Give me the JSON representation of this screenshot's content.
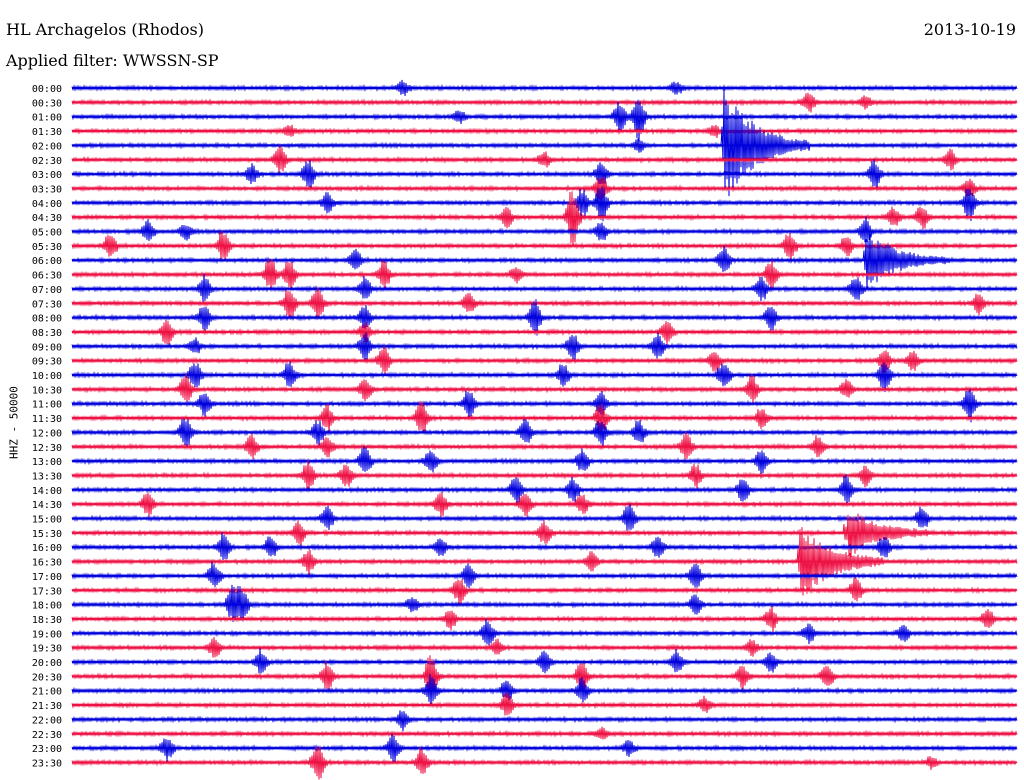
{
  "header": {
    "station": "HL Archagelos (Rhodos)",
    "date": "2013-10-19",
    "filter_label": "Applied filter: WWSSN-SP"
  },
  "axis": {
    "ylabel": "HHZ - 50000"
  },
  "colors": {
    "blue": "#0000dd",
    "red": "#ee1144",
    "background": "#ffffff"
  },
  "chart_data": {
    "type": "line",
    "description_of_axes": "helicorder",
    "ylabel": "HHZ - 50000",
    "rows": [
      {
        "label": "00:00",
        "color": "blue",
        "events": [
          [
            0.35,
            8
          ],
          [
            0.64,
            6
          ]
        ]
      },
      {
        "label": "00:30",
        "color": "red",
        "events": [
          [
            0.78,
            10
          ],
          [
            0.84,
            6
          ]
        ]
      },
      {
        "label": "01:00",
        "color": "blue",
        "events": [
          [
            0.58,
            15
          ],
          [
            0.6,
            24
          ],
          [
            0.41,
            6
          ]
        ]
      },
      {
        "label": "01:30",
        "color": "red",
        "events": [
          [
            0.68,
            6
          ],
          [
            0.23,
            6
          ]
        ]
      },
      {
        "label": "02:00",
        "color": "blue",
        "events": [
          [
            0.69,
            60,
            "quake"
          ],
          [
            0.6,
            6
          ]
        ]
      },
      {
        "label": "02:30",
        "color": "red",
        "events": [
          [
            0.22,
            14
          ],
          [
            0.5,
            8
          ],
          [
            0.93,
            10
          ]
        ]
      },
      {
        "label": "03:00",
        "color": "blue",
        "events": [
          [
            0.19,
            10
          ],
          [
            0.25,
            16
          ],
          [
            0.56,
            12
          ],
          [
            0.85,
            14
          ]
        ]
      },
      {
        "label": "03:30",
        "color": "red",
        "events": [
          [
            0.56,
            14
          ],
          [
            0.95,
            10
          ]
        ]
      },
      {
        "label": "04:00",
        "color": "blue",
        "events": [
          [
            0.27,
            10
          ],
          [
            0.54,
            14
          ],
          [
            0.56,
            20
          ],
          [
            0.95,
            18
          ]
        ]
      },
      {
        "label": "04:30",
        "color": "red",
        "events": [
          [
            0.53,
            30
          ],
          [
            0.46,
            10
          ],
          [
            0.87,
            10
          ],
          [
            0.9,
            12
          ]
        ]
      },
      {
        "label": "05:00",
        "color": "blue",
        "events": [
          [
            0.08,
            12
          ],
          [
            0.12,
            8
          ],
          [
            0.56,
            10
          ],
          [
            0.84,
            14
          ]
        ]
      },
      {
        "label": "05:30",
        "color": "red",
        "events": [
          [
            0.04,
            14
          ],
          [
            0.16,
            16
          ],
          [
            0.76,
            14
          ],
          [
            0.82,
            10
          ]
        ]
      },
      {
        "label": "06:00",
        "color": "blue",
        "events": [
          [
            0.84,
            30,
            "quake"
          ],
          [
            0.3,
            12
          ],
          [
            0.69,
            14
          ]
        ]
      },
      {
        "label": "06:30",
        "color": "red",
        "events": [
          [
            0.21,
            18
          ],
          [
            0.23,
            16
          ],
          [
            0.33,
            14
          ],
          [
            0.74,
            14
          ],
          [
            0.47,
            8
          ]
        ]
      },
      {
        "label": "07:00",
        "color": "blue",
        "events": [
          [
            0.14,
            14
          ],
          [
            0.31,
            12
          ],
          [
            0.73,
            12
          ],
          [
            0.83,
            14
          ]
        ]
      },
      {
        "label": "07:30",
        "color": "red",
        "events": [
          [
            0.23,
            16
          ],
          [
            0.26,
            18
          ],
          [
            0.42,
            10
          ],
          [
            0.96,
            10
          ]
        ]
      },
      {
        "label": "08:00",
        "color": "blue",
        "events": [
          [
            0.14,
            14
          ],
          [
            0.31,
            12
          ],
          [
            0.49,
            18
          ],
          [
            0.74,
            12
          ]
        ]
      },
      {
        "label": "08:30",
        "color": "red",
        "events": [
          [
            0.1,
            14
          ],
          [
            0.31,
            10
          ],
          [
            0.63,
            12
          ]
        ]
      },
      {
        "label": "09:00",
        "color": "blue",
        "events": [
          [
            0.31,
            14
          ],
          [
            0.53,
            14
          ],
          [
            0.62,
            14
          ],
          [
            0.13,
            8
          ]
        ]
      },
      {
        "label": "09:30",
        "color": "red",
        "events": [
          [
            0.33,
            14
          ],
          [
            0.68,
            12
          ],
          [
            0.86,
            12
          ],
          [
            0.89,
            10
          ]
        ]
      },
      {
        "label": "10:00",
        "color": "blue",
        "events": [
          [
            0.13,
            14
          ],
          [
            0.23,
            14
          ],
          [
            0.52,
            12
          ],
          [
            0.69,
            14
          ],
          [
            0.86,
            16
          ]
        ]
      },
      {
        "label": "10:30",
        "color": "red",
        "events": [
          [
            0.12,
            14
          ],
          [
            0.31,
            12
          ],
          [
            0.72,
            14
          ],
          [
            0.82,
            10
          ]
        ]
      },
      {
        "label": "11:00",
        "color": "blue",
        "events": [
          [
            0.14,
            12
          ],
          [
            0.42,
            14
          ],
          [
            0.56,
            12
          ],
          [
            0.95,
            18
          ]
        ]
      },
      {
        "label": "11:30",
        "color": "red",
        "events": [
          [
            0.27,
            14
          ],
          [
            0.37,
            16
          ],
          [
            0.56,
            14
          ],
          [
            0.73,
            10
          ]
        ]
      },
      {
        "label": "12:00",
        "color": "blue",
        "events": [
          [
            0.12,
            16
          ],
          [
            0.26,
            12
          ],
          [
            0.48,
            14
          ],
          [
            0.56,
            14
          ],
          [
            0.6,
            12
          ]
        ]
      },
      {
        "label": "12:30",
        "color": "red",
        "events": [
          [
            0.19,
            12
          ],
          [
            0.27,
            10
          ],
          [
            0.65,
            14
          ],
          [
            0.79,
            12
          ]
        ]
      },
      {
        "label": "13:00",
        "color": "blue",
        "events": [
          [
            0.31,
            14
          ],
          [
            0.38,
            12
          ],
          [
            0.54,
            12
          ],
          [
            0.73,
            12
          ]
        ]
      },
      {
        "label": "13:30",
        "color": "red",
        "events": [
          [
            0.25,
            14
          ],
          [
            0.29,
            12
          ],
          [
            0.66,
            12
          ],
          [
            0.84,
            10
          ]
        ]
      },
      {
        "label": "14:00",
        "color": "blue",
        "events": [
          [
            0.47,
            14
          ],
          [
            0.53,
            12
          ],
          [
            0.71,
            12
          ],
          [
            0.82,
            14
          ]
        ]
      },
      {
        "label": "14:30",
        "color": "red",
        "events": [
          [
            0.08,
            12
          ],
          [
            0.39,
            12
          ],
          [
            0.48,
            12
          ],
          [
            0.54,
            10
          ]
        ]
      },
      {
        "label": "15:00",
        "color": "blue",
        "events": [
          [
            0.27,
            12
          ],
          [
            0.59,
            14
          ],
          [
            0.9,
            12
          ]
        ]
      },
      {
        "label": "15:30",
        "color": "red",
        "events": [
          [
            0.24,
            12
          ],
          [
            0.5,
            12
          ],
          [
            0.82,
            26,
            "quake"
          ]
        ]
      },
      {
        "label": "16:00",
        "color": "blue",
        "events": [
          [
            0.16,
            14
          ],
          [
            0.21,
            12
          ],
          [
            0.39,
            10
          ],
          [
            0.62,
            12
          ],
          [
            0.86,
            12
          ]
        ]
      },
      {
        "label": "16:30",
        "color": "red",
        "events": [
          [
            0.77,
            40,
            "quake"
          ],
          [
            0.25,
            12
          ],
          [
            0.55,
            10
          ]
        ]
      },
      {
        "label": "17:00",
        "color": "blue",
        "events": [
          [
            0.15,
            14
          ],
          [
            0.42,
            12
          ],
          [
            0.66,
            14
          ]
        ]
      },
      {
        "label": "17:30",
        "color": "red",
        "events": [
          [
            0.41,
            14
          ],
          [
            0.83,
            12
          ]
        ]
      },
      {
        "label": "18:00",
        "color": "blue",
        "events": [
          [
            0.17,
            20
          ],
          [
            0.18,
            16
          ],
          [
            0.36,
            8
          ],
          [
            0.66,
            10
          ]
        ]
      },
      {
        "label": "18:30",
        "color": "red",
        "events": [
          [
            0.4,
            10
          ],
          [
            0.74,
            12
          ],
          [
            0.97,
            10
          ]
        ]
      },
      {
        "label": "19:00",
        "color": "blue",
        "events": [
          [
            0.44,
            14
          ],
          [
            0.78,
            10
          ],
          [
            0.88,
            8
          ]
        ]
      },
      {
        "label": "19:30",
        "color": "red",
        "events": [
          [
            0.15,
            10
          ],
          [
            0.45,
            8
          ],
          [
            0.72,
            8
          ]
        ]
      },
      {
        "label": "20:00",
        "color": "blue",
        "events": [
          [
            0.2,
            12
          ],
          [
            0.5,
            10
          ],
          [
            0.64,
            12
          ],
          [
            0.74,
            10
          ]
        ]
      },
      {
        "label": "20:30",
        "color": "red",
        "events": [
          [
            0.27,
            14
          ],
          [
            0.38,
            22
          ],
          [
            0.54,
            16
          ],
          [
            0.71,
            12
          ],
          [
            0.8,
            12
          ]
        ]
      },
      {
        "label": "21:00",
        "color": "blue",
        "events": [
          [
            0.38,
            16
          ],
          [
            0.46,
            10
          ],
          [
            0.54,
            12
          ]
        ]
      },
      {
        "label": "21:30",
        "color": "red",
        "events": [
          [
            0.46,
            12
          ],
          [
            0.67,
            8
          ]
        ]
      },
      {
        "label": "22:00",
        "color": "blue",
        "events": [
          [
            0.35,
            10
          ]
        ]
      },
      {
        "label": "22:30",
        "color": "red",
        "events": [
          [
            0.56,
            6
          ]
        ]
      },
      {
        "label": "23:00",
        "color": "blue",
        "events": [
          [
            0.1,
            12
          ],
          [
            0.34,
            14
          ],
          [
            0.59,
            8
          ]
        ]
      },
      {
        "label": "23:30",
        "color": "red",
        "events": [
          [
            0.26,
            20
          ],
          [
            0.37,
            14
          ],
          [
            0.91,
            6
          ]
        ]
      }
    ]
  }
}
